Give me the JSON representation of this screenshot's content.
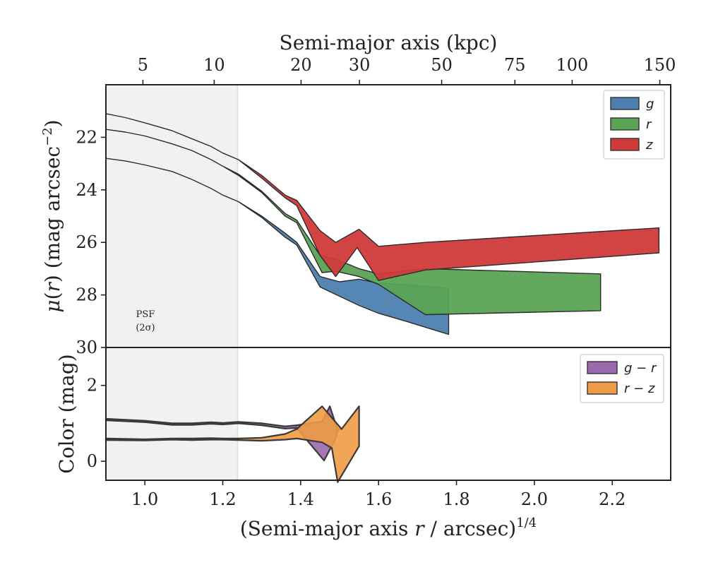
{
  "chart_data": [
    {
      "type": "area",
      "panel": "surface-brightness",
      "ylabel": "μ(r) (mag arcsec⁻²)",
      "ylim": [
        30,
        20
      ],
      "yticks": [
        22,
        24,
        26,
        28,
        30
      ],
      "xlim": [
        0.9,
        2.35
      ],
      "top_axis": {
        "label": "Semi-major axis (kpc)",
        "ticks": [
          "5",
          "10",
          "20",
          "30",
          "50",
          "75",
          "100",
          "150"
        ],
        "tick_positions_x": [
          0.995,
          1.178,
          1.401,
          1.551,
          1.762,
          1.95,
          2.097,
          2.322
        ]
      },
      "psf_region_x": [
        0.9,
        1.238
      ],
      "psf_note": [
        "PSF",
        "(2σ)"
      ],
      "legend_position": "top-right",
      "series": [
        {
          "name": "g",
          "color": "#4c7fb0",
          "upper": [
            [
              0.9,
              22.8
            ],
            [
              0.95,
              22.9
            ],
            [
              1.0,
              23.05
            ],
            [
              1.07,
              23.3
            ],
            [
              1.12,
              23.6
            ],
            [
              1.17,
              23.95
            ],
            [
              1.2,
              24.2
            ],
            [
              1.24,
              24.45
            ],
            [
              1.3,
              25.0
            ],
            [
              1.36,
              25.65
            ],
            [
              1.39,
              26.0
            ],
            [
              1.45,
              27.3
            ],
            [
              1.5,
              27.5
            ],
            [
              1.55,
              27.4
            ],
            [
              1.6,
              27.55
            ],
            [
              1.67,
              27.6
            ],
            [
              1.78,
              27.75
            ]
          ],
          "lower": [
            [
              0.9,
              22.8
            ],
            [
              0.95,
              22.9
            ],
            [
              1.0,
              23.05
            ],
            [
              1.07,
              23.3
            ],
            [
              1.12,
              23.6
            ],
            [
              1.17,
              23.95
            ],
            [
              1.2,
              24.2
            ],
            [
              1.24,
              24.45
            ],
            [
              1.3,
              25.05
            ],
            [
              1.36,
              25.8
            ],
            [
              1.39,
              26.1
            ],
            [
              1.45,
              27.7
            ],
            [
              1.5,
              28.05
            ],
            [
              1.55,
              28.4
            ],
            [
              1.6,
              28.7
            ],
            [
              1.67,
              29.0
            ],
            [
              1.78,
              29.5
            ]
          ]
        },
        {
          "name": "r",
          "color": "#5aa354",
          "upper": [
            [
              0.9,
              21.7
            ],
            [
              0.95,
              21.8
            ],
            [
              1.0,
              21.95
            ],
            [
              1.07,
              22.25
            ],
            [
              1.12,
              22.5
            ],
            [
              1.17,
              22.85
            ],
            [
              1.2,
              23.1
            ],
            [
              1.24,
              23.4
            ],
            [
              1.3,
              24.05
            ],
            [
              1.36,
              24.9
            ],
            [
              1.39,
              25.15
            ],
            [
              1.45,
              26.5
            ],
            [
              1.5,
              26.7
            ],
            [
              1.55,
              27.0
            ],
            [
              1.6,
              27.2
            ],
            [
              1.72,
              27.0
            ],
            [
              2.17,
              27.2
            ]
          ],
          "lower": [
            [
              0.9,
              21.7
            ],
            [
              0.95,
              21.8
            ],
            [
              1.0,
              21.95
            ],
            [
              1.07,
              22.25
            ],
            [
              1.12,
              22.5
            ],
            [
              1.17,
              22.85
            ],
            [
              1.2,
              23.1
            ],
            [
              1.24,
              23.45
            ],
            [
              1.3,
              24.1
            ],
            [
              1.36,
              25.0
            ],
            [
              1.39,
              25.25
            ],
            [
              1.455,
              27.15
            ],
            [
              1.49,
              27.1
            ],
            [
              1.55,
              27.3
            ],
            [
              1.6,
              27.6
            ],
            [
              1.72,
              28.75
            ],
            [
              2.17,
              28.6
            ]
          ]
        },
        {
          "name": "z",
          "color": "#d03a3a",
          "upper": [
            [
              0.9,
              21.1
            ],
            [
              0.95,
              21.25
            ],
            [
              1.0,
              21.45
            ],
            [
              1.07,
              21.75
            ],
            [
              1.12,
              22.05
            ],
            [
              1.17,
              22.35
            ],
            [
              1.2,
              22.6
            ],
            [
              1.24,
              22.85
            ],
            [
              1.3,
              23.45
            ],
            [
              1.36,
              24.2
            ],
            [
              1.39,
              24.4
            ],
            [
              1.45,
              25.55
            ],
            [
              1.49,
              26.0
            ],
            [
              1.55,
              25.5
            ],
            [
              1.6,
              26.15
            ],
            [
              1.72,
              26.0
            ],
            [
              2.32,
              25.45
            ]
          ],
          "lower": [
            [
              0.9,
              21.1
            ],
            [
              0.95,
              21.25
            ],
            [
              1.0,
              21.45
            ],
            [
              1.07,
              21.75
            ],
            [
              1.12,
              22.05
            ],
            [
              1.17,
              22.35
            ],
            [
              1.2,
              22.6
            ],
            [
              1.24,
              22.85
            ],
            [
              1.3,
              23.55
            ],
            [
              1.36,
              24.3
            ],
            [
              1.39,
              24.6
            ],
            [
              1.45,
              26.5
            ],
            [
              1.49,
              27.3
            ],
            [
              1.545,
              26.2
            ],
            [
              1.6,
              27.45
            ],
            [
              1.72,
              27.05
            ],
            [
              2.32,
              26.4
            ]
          ]
        }
      ]
    },
    {
      "type": "area",
      "panel": "color",
      "ylabel": "Color (mag)",
      "xlabel": "(Semi-major axis r / arcsec)^1/4",
      "ylim": [
        -0.5,
        3.0
      ],
      "yticks": [
        0,
        2
      ],
      "xlim": [
        0.9,
        2.35
      ],
      "xticks": [
        1.0,
        1.2,
        1.4,
        1.6,
        1.8,
        2.0,
        2.2
      ],
      "xtick_labels": [
        "1.0",
        "1.2",
        "1.4",
        "1.6",
        "1.8",
        "2.0",
        "2.2"
      ],
      "legend_position": "top-right",
      "series": [
        {
          "name": "g − r",
          "color": "#9b69ad",
          "upper": [
            [
              0.9,
              1.12
            ],
            [
              1.0,
              1.07
            ],
            [
              1.07,
              1.0
            ],
            [
              1.12,
              1.0
            ],
            [
              1.17,
              1.03
            ],
            [
              1.2,
              1.01
            ],
            [
              1.24,
              1.04
            ],
            [
              1.3,
              1.0
            ],
            [
              1.36,
              0.92
            ],
            [
              1.39,
              0.95
            ],
            [
              1.455,
              1.05
            ],
            [
              1.475,
              1.45
            ],
            [
              1.495,
              0.82
            ],
            [
              1.5,
              0.85
            ]
          ],
          "lower": [
            [
              0.9,
              1.08
            ],
            [
              1.0,
              1.03
            ],
            [
              1.07,
              0.96
            ],
            [
              1.12,
              0.96
            ],
            [
              1.17,
              0.99
            ],
            [
              1.2,
              0.97
            ],
            [
              1.24,
              1.0
            ],
            [
              1.3,
              0.95
            ],
            [
              1.36,
              0.86
            ],
            [
              1.39,
              0.88
            ],
            [
              1.46,
              0.02
            ],
            [
              1.49,
              0.6
            ],
            [
              1.495,
              0.82
            ],
            [
              1.5,
              0.85
            ]
          ]
        },
        {
          "name": "r − z",
          "color": "#ee9b45",
          "upper": [
            [
              0.9,
              0.6
            ],
            [
              1.0,
              0.58
            ],
            [
              1.07,
              0.6
            ],
            [
              1.12,
              0.6
            ],
            [
              1.17,
              0.61
            ],
            [
              1.2,
              0.6
            ],
            [
              1.24,
              0.6
            ],
            [
              1.3,
              0.62
            ],
            [
              1.36,
              0.72
            ],
            [
              1.39,
              0.85
            ],
            [
              1.455,
              1.45
            ],
            [
              1.48,
              1.15
            ],
            [
              1.505,
              0.85
            ],
            [
              1.55,
              1.45
            ]
          ],
          "lower": [
            [
              0.9,
              0.56
            ],
            [
              1.0,
              0.55
            ],
            [
              1.07,
              0.57
            ],
            [
              1.12,
              0.56
            ],
            [
              1.17,
              0.57
            ],
            [
              1.2,
              0.57
            ],
            [
              1.24,
              0.56
            ],
            [
              1.3,
              0.54
            ],
            [
              1.36,
              0.57
            ],
            [
              1.39,
              0.6
            ],
            [
              1.455,
              0.5
            ],
            [
              1.48,
              0.35
            ],
            [
              1.495,
              -0.55
            ],
            [
              1.55,
              0.4
            ]
          ]
        }
      ]
    }
  ]
}
